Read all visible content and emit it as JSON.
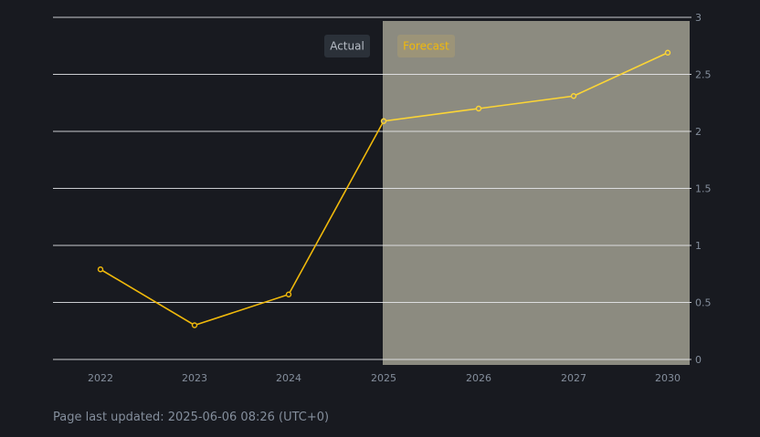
{
  "footer": {
    "updated_text": "Page last updated: 2025-06-06 08:26 (UTC+0)"
  },
  "legend": {
    "actual_label": "Actual",
    "forecast_label": "Forecast"
  },
  "colors": {
    "background": "#181a20",
    "line": "#f0b90b",
    "forecast_line": "#fcd535",
    "forecast_shade": "#8c8b80",
    "grid": "#eaecef",
    "tick_text": "#848e9c",
    "legend_bg": "#2b3139"
  },
  "chart_data": {
    "type": "line",
    "categories": [
      "2022",
      "2023",
      "2024",
      "2025",
      "2026",
      "2027",
      "2030"
    ],
    "values": [
      0.79,
      0.3,
      0.57,
      2.09,
      2.2,
      2.31,
      2.69
    ],
    "forecast_start_index": 3,
    "ylim": [
      0,
      3
    ],
    "yticks": [
      0,
      0.5,
      1,
      1.5,
      2,
      2.5,
      3
    ],
    "ytick_labels": [
      "0",
      "0.5",
      "1",
      "1.5",
      "2",
      "2.5",
      "3"
    ],
    "y_axis_position": "right",
    "grid": true,
    "legend_position": "top-center"
  }
}
